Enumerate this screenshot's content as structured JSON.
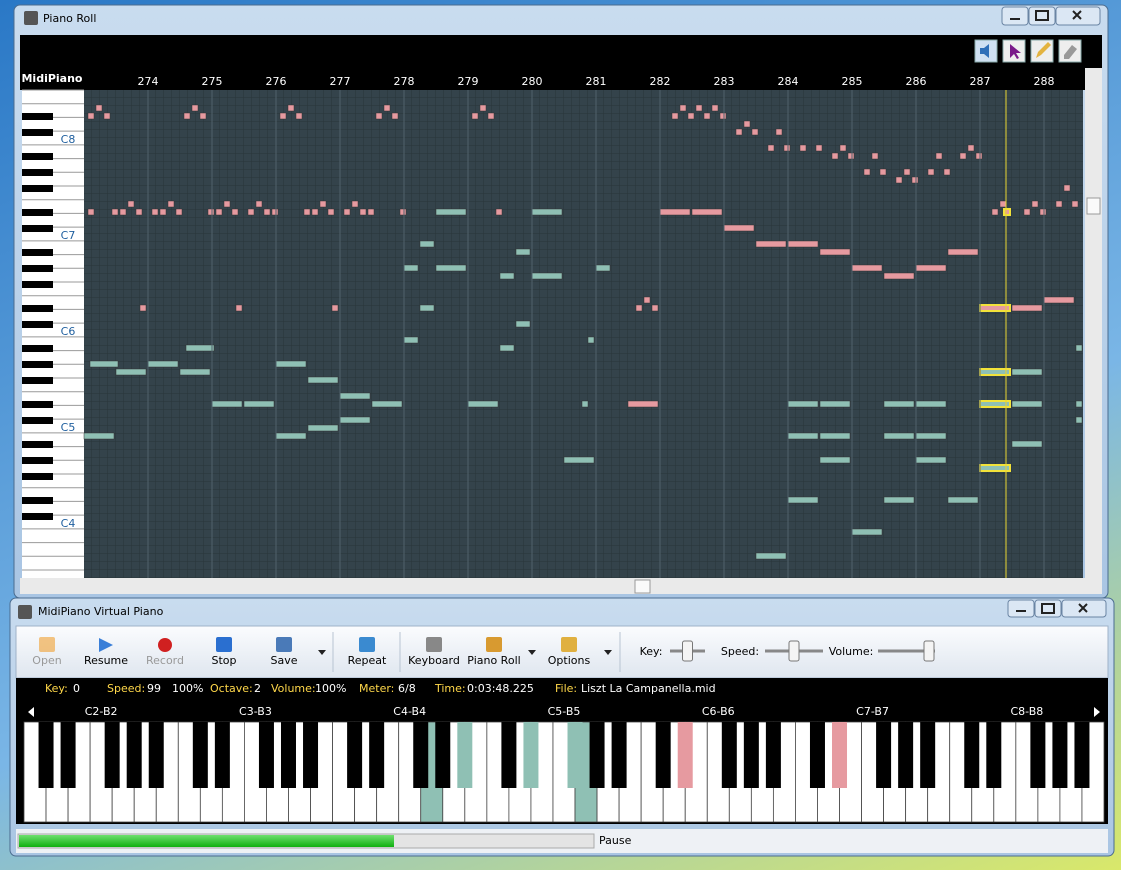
{
  "piano_roll": {
    "title": "Piano Roll",
    "keyboard_label": "MidiPiano",
    "measures": [
      274,
      275,
      276,
      277,
      278,
      279,
      280,
      281,
      282,
      283,
      284,
      285,
      286,
      287,
      288
    ],
    "octave_labels": [
      "C8",
      "C7",
      "C6",
      "C5",
      "C4"
    ]
  },
  "virtual_piano": {
    "title": "MidiPiano Virtual Piano",
    "toolbar": [
      "Open",
      "Resume",
      "Record",
      "Stop",
      "Save",
      "Repeat",
      "Keyboard",
      "Piano Roll",
      "Options"
    ],
    "sliders": [
      "Key:",
      "Speed:",
      "Volume:"
    ],
    "status": [
      {
        "label": "Key:",
        "values": [
          "0"
        ]
      },
      {
        "label": "Speed:",
        "values": [
          "99",
          "100%"
        ]
      },
      {
        "label": "Octave:",
        "values": [
          "2"
        ]
      },
      {
        "label": "Volume:",
        "values": [
          "100%"
        ]
      },
      {
        "label": "Meter:",
        "values": [
          "6/8"
        ]
      },
      {
        "label": "Time:",
        "values": [
          "0:03:48.225"
        ]
      },
      {
        "label": "File:",
        "values": [
          "Liszt La Campanella.mid"
        ]
      }
    ],
    "octaves": [
      "C2-B2",
      "C3-B3",
      "C4-B4",
      "C5-B5",
      "C6-B6",
      "C7-B7",
      "C8-B8"
    ],
    "progress_status": "Pause"
  }
}
